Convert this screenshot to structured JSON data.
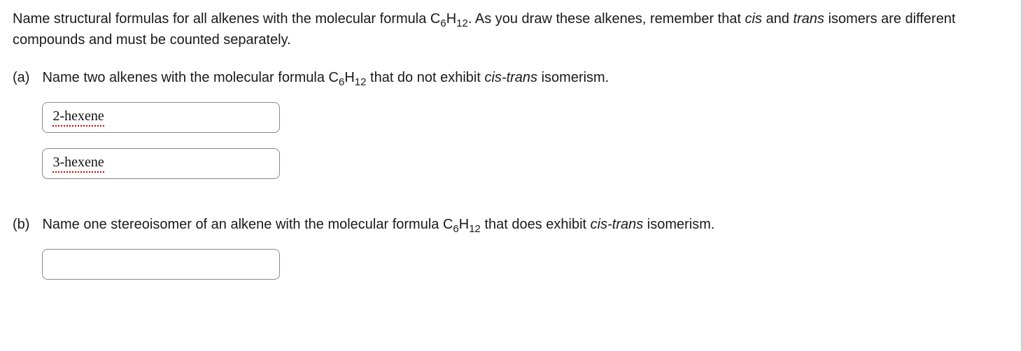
{
  "intro": {
    "pre": "Name structural formulas for all alkenes with the molecular formula ",
    "formula_C": "C",
    "formula_sub1": "6",
    "formula_H": "H",
    "formula_sub2": "12",
    "post1": ". As you draw these alkenes, remember that ",
    "cis": "cis",
    "and": " and ",
    "trans": "trans",
    "post2": " isomers are different compounds and must be counted separately."
  },
  "partA": {
    "label": "(a)",
    "pre": "Name two alkenes with the molecular formula ",
    "formula_C": "C",
    "formula_sub1": "6",
    "formula_H": "H",
    "formula_sub2": "12",
    "mid": " that do not exhibit ",
    "cistrans": "cis-trans",
    "post": " isomerism.",
    "answer1": "2-hexene",
    "answer2": "3-hexene"
  },
  "partB": {
    "label": "(b)",
    "pre": "Name one stereoisomer of an alkene with the molecular formula ",
    "formula_C": "C",
    "formula_sub1": "6",
    "formula_H": "H",
    "formula_sub2": "12",
    "mid": " that does exhibit ",
    "cistrans": "cis-trans",
    "post": " isomerism.",
    "answer": ""
  }
}
